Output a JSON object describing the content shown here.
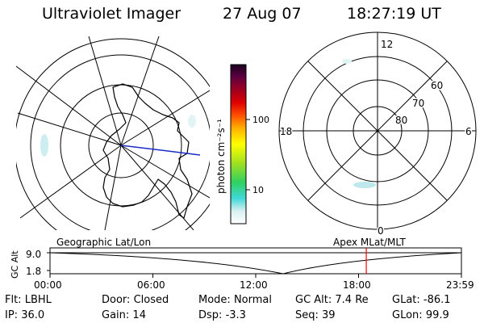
{
  "header": {
    "app_title": "Ultraviolet Imager",
    "date": "27 Aug 07",
    "time": "18:27:19 UT"
  },
  "colorbar": {
    "unit_label": "photon cm⁻²s⁻¹",
    "ticks": [
      "100",
      "10"
    ]
  },
  "polar_plot": {
    "mlt_labels": {
      "top": "12",
      "bottom": "0",
      "left": "18",
      "right": "6"
    },
    "lat_labels": [
      "60",
      "70",
      "80"
    ]
  },
  "timeline": {
    "left_title": "Geographic Lat/Lon",
    "right_title": "Apex MLat/MLT",
    "y_label": "GC Alt",
    "y_ticks": [
      "9.0",
      "1.8"
    ],
    "x_ticks": [
      "00:00",
      "06:00",
      "12:00",
      "18:00",
      "23:59"
    ],
    "cursor_time": "18:27",
    "line_color": "#000000",
    "cursor_color": "#ff0000"
  },
  "footer": {
    "row1": [
      {
        "label": "Flt:",
        "value": "LBHL"
      },
      {
        "label": "Door:",
        "value": "Closed"
      },
      {
        "label": "Mode:",
        "value": "Normal"
      },
      {
        "label": "GC Alt:",
        "value": "7.4 Re"
      },
      {
        "label": "GLat:",
        "value": "-86.1"
      }
    ],
    "row2": [
      {
        "label": "IP:",
        "value": "36.0"
      },
      {
        "label": "Gain:",
        "value": "14"
      },
      {
        "label": "Dsp:",
        "value": "-3.3"
      },
      {
        "label": "Seq:",
        "value": "39"
      },
      {
        "label": "GLon:",
        "value": "99.9"
      }
    ]
  }
}
